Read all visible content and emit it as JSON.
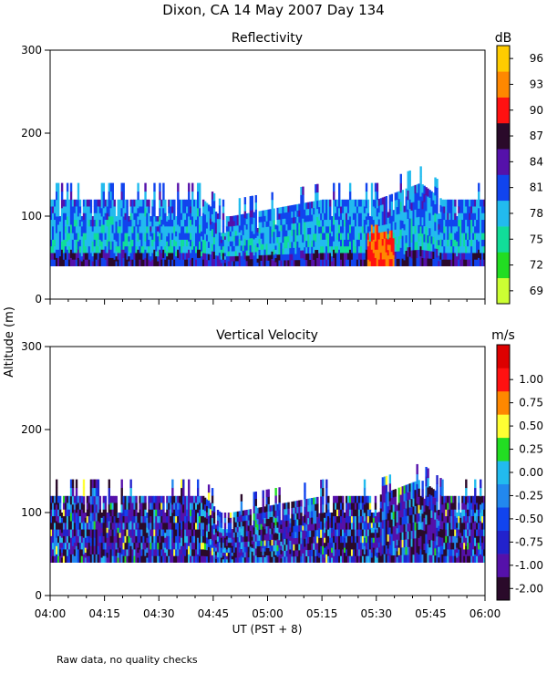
{
  "title": "Dixon, CA 14 May 2007  Day 134",
  "footnote": "Raw data, no quality checks",
  "chart_data": [
    {
      "type": "heatmap",
      "title": "Reflectivity",
      "ylabel": "Altitude (m)",
      "xlabel": "UT  (PST + 8)",
      "ylim": [
        0,
        300
      ],
      "yticks": [
        "0",
        "100",
        "200",
        "300"
      ],
      "xticks": [
        "04:00",
        "04:15",
        "04:30",
        "04:45",
        "05:00",
        "05:15",
        "05:30",
        "05:45",
        "06:00"
      ],
      "colorbar": {
        "unit": "dB",
        "labels": [
          "69",
          "72",
          "75",
          "78",
          "81",
          "84",
          "87",
          "90",
          "93",
          "96"
        ],
        "colors": [
          "#ccff33",
          "#22dd22",
          "#11dd99",
          "#22bbee",
          "#1144ee",
          "#5511aa",
          "#2a0a2a",
          "#ff1111",
          "#ff8800",
          "#ffcc00"
        ]
      },
      "profile": {
        "time_hours": [
          4.0,
          4.25,
          4.5,
          4.7,
          4.78,
          4.83,
          5.25,
          5.5,
          5.7,
          5.8,
          6.0
        ],
        "top_m": [
          120,
          120,
          120,
          120,
          100,
          100,
          120,
          120,
          140,
          120,
          120
        ],
        "bottom_m": 40
      }
    },
    {
      "type": "heatmap",
      "title": "Vertical Velocity",
      "ylabel": "Altitude (m)",
      "xlabel": "UT  (PST + 8)",
      "ylim": [
        0,
        300
      ],
      "yticks": [
        "0",
        "100",
        "200",
        "300"
      ],
      "xticks": [
        "04:00",
        "04:15",
        "04:30",
        "04:45",
        "05:00",
        "05:15",
        "05:30",
        "05:45",
        "06:00"
      ],
      "colorbar": {
        "unit": "m/s",
        "labels": [
          "-2.00",
          "-1.00",
          "-0.75",
          "-0.50",
          "-0.25",
          "0.00",
          "0.25",
          "0.50",
          "0.75",
          "1.00"
        ],
        "colors": [
          "#2a0a2a",
          "#5511aa",
          "#2222cc",
          "#1144ee",
          "#2288ee",
          "#22bbee",
          "#22dd22",
          "#ffff33",
          "#ff8800",
          "#ff1111",
          "#dd0000"
        ]
      },
      "profile": {
        "time_hours": [
          4.0,
          4.25,
          4.5,
          4.7,
          4.78,
          4.83,
          5.25,
          5.5,
          5.7,
          5.8,
          6.0
        ],
        "top_m": [
          120,
          120,
          120,
          120,
          100,
          100,
          120,
          120,
          140,
          120,
          120
        ],
        "bottom_m": 40
      }
    }
  ]
}
